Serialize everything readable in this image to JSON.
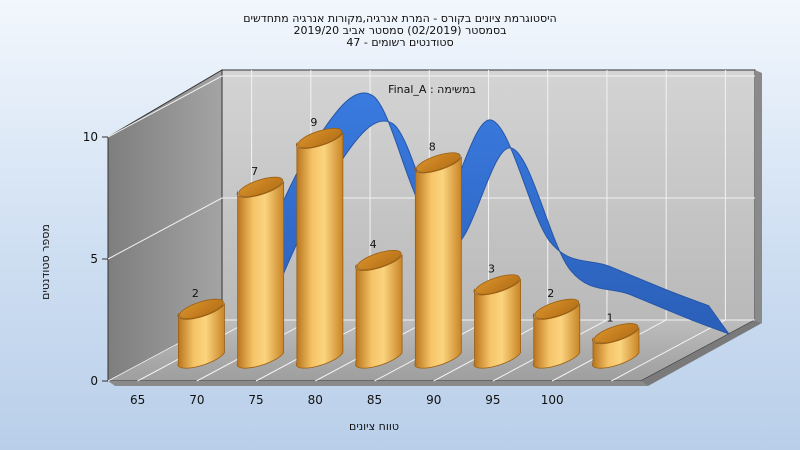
{
  "chart_data": {
    "type": "bar",
    "title_lines": [
      "היסטוגרמת ציונים בקורס - המרת אנרגיה,מקורות אנרגיה מתחדשים",
      "בסמסטר  (02/2019)  סמסטר אביב 2019/20",
      "סטודנטים רשומים - 47"
    ],
    "subtitle": "Final_A : במשימה",
    "xlabel": "טווח ציונים",
    "ylabel": "מספר סטודנטים",
    "categories": [
      "65",
      "70",
      "75",
      "80",
      "85",
      "90",
      "95",
      "100"
    ],
    "values": [
      2,
      7,
      9,
      4,
      8,
      3,
      2,
      1
    ],
    "ylim": [
      0,
      10
    ],
    "yticks": [
      "0",
      "5",
      "10"
    ],
    "grid": true,
    "series": [
      {
        "values": [
          2,
          7,
          9,
          4,
          8,
          3,
          2,
          1
        ],
        "color": "#e8a93a"
      },
      {
        "type": "smooth-ribbon",
        "values": [
          2,
          7,
          9,
          4,
          8,
          3,
          2,
          1
        ],
        "color": "#2f6fd0"
      }
    ]
  }
}
